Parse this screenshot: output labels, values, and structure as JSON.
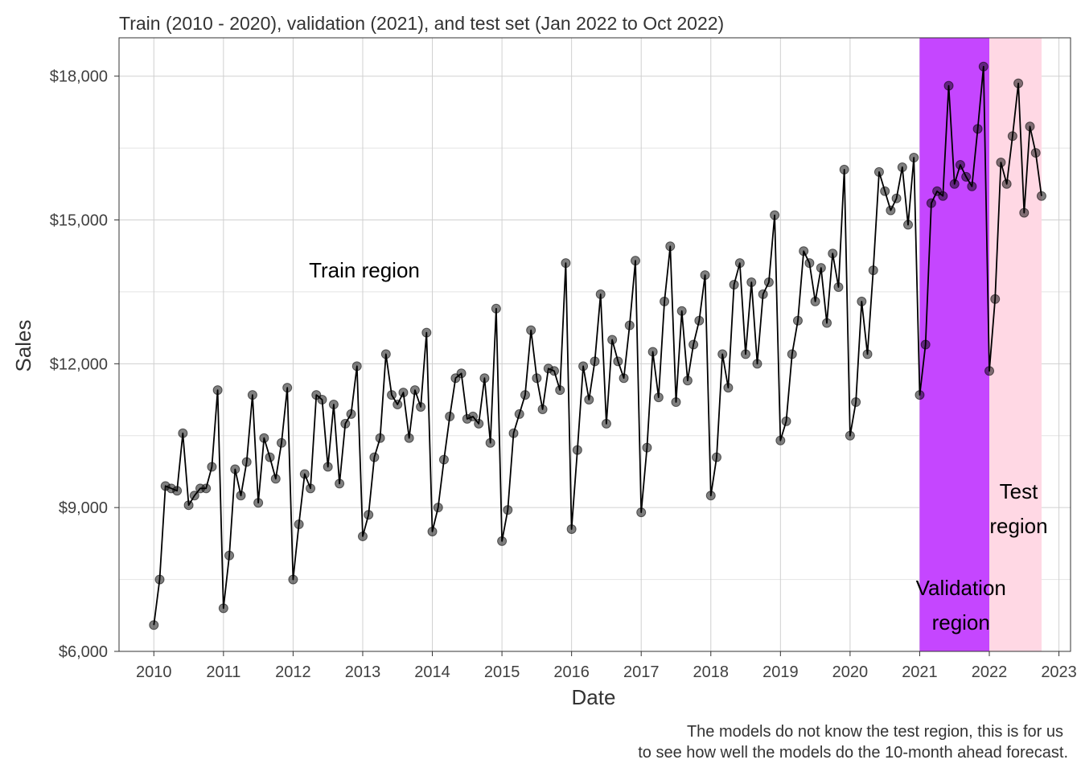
{
  "chart_data": {
    "type": "line",
    "title": "Train (2010 - 2020), validation (2021), and test set (Jan 2022 to Oct 2022)",
    "xlabel": "Date",
    "ylabel": "Sales",
    "caption_lines": [
      "The models do not know the test region, this is for us",
      "to see how well the models do the 10-month ahead forecast."
    ],
    "x_ticks": [
      "2010",
      "2011",
      "2012",
      "2013",
      "2014",
      "2015",
      "2016",
      "2017",
      "2018",
      "2019",
      "2020",
      "2021",
      "2022",
      "2023"
    ],
    "y_ticks": [
      6000,
      9000,
      12000,
      15000,
      18000
    ],
    "y_tick_labels": [
      "$6,000",
      "$9,000",
      "$12,000",
      "$15,000",
      "$18,000"
    ],
    "xlim": [
      "2009-07",
      "2023-03"
    ],
    "ylim": [
      6000,
      18800
    ],
    "grid": true,
    "regions": [
      {
        "label_lines": [
          "Validation",
          "region"
        ],
        "start": "2021-01",
        "end": "2022-01",
        "color": "#c546ff"
      },
      {
        "label_lines": [
          "Test",
          "region"
        ],
        "start": "2022-01",
        "end": "2022-10",
        "color": "#ffd8e4"
      }
    ],
    "annotations": [
      {
        "text": "Train region"
      }
    ],
    "series": [
      {
        "start": "2010-01",
        "frequency": "monthly",
        "values": [
          6550,
          7500,
          9450,
          9400,
          9350,
          10550,
          9050,
          9250,
          9400,
          9400,
          9850,
          11450,
          6900,
          8000,
          9800,
          9250,
          9950,
          11350,
          9100,
          10450,
          10050,
          9600,
          10350,
          11500,
          7500,
          8650,
          9700,
          9400,
          11350,
          11250,
          9850,
          11150,
          9500,
          10750,
          10950,
          11950,
          8400,
          8850,
          10050,
          10450,
          12200,
          11350,
          11150,
          11400,
          10450,
          11450,
          11100,
          12650,
          8500,
          9000,
          10000,
          10900,
          11700,
          11800,
          10850,
          10900,
          10750,
          11700,
          10350,
          13150,
          8300,
          8950,
          10550,
          10950,
          11350,
          12700,
          11700,
          11050,
          11900,
          11850,
          11450,
          14100,
          8550,
          10200,
          11950,
          11250,
          12050,
          13450,
          10750,
          12500,
          12050,
          11700,
          12800,
          14150,
          8900,
          10250,
          12250,
          11300,
          13300,
          14450,
          11200,
          13100,
          11650,
          12400,
          12900,
          13850,
          9250,
          10050,
          12200,
          11500,
          13650,
          14100,
          12200,
          13700,
          12000,
          13450,
          13700,
          15100,
          10400,
          10800,
          12200,
          12900,
          14350,
          14100,
          13300,
          14000,
          12850,
          14300,
          13600,
          16050,
          10500,
          11200,
          13300,
          12200,
          13950,
          16000,
          15600,
          15200,
          15450,
          16100,
          14900,
          16300,
          11350,
          12400,
          15350,
          15600,
          15500,
          17800,
          15750,
          16150,
          15900,
          15700,
          16900,
          18200,
          11850,
          13350,
          16200,
          15750,
          16750,
          17850,
          15150,
          16950,
          16400,
          15500
        ]
      }
    ]
  }
}
